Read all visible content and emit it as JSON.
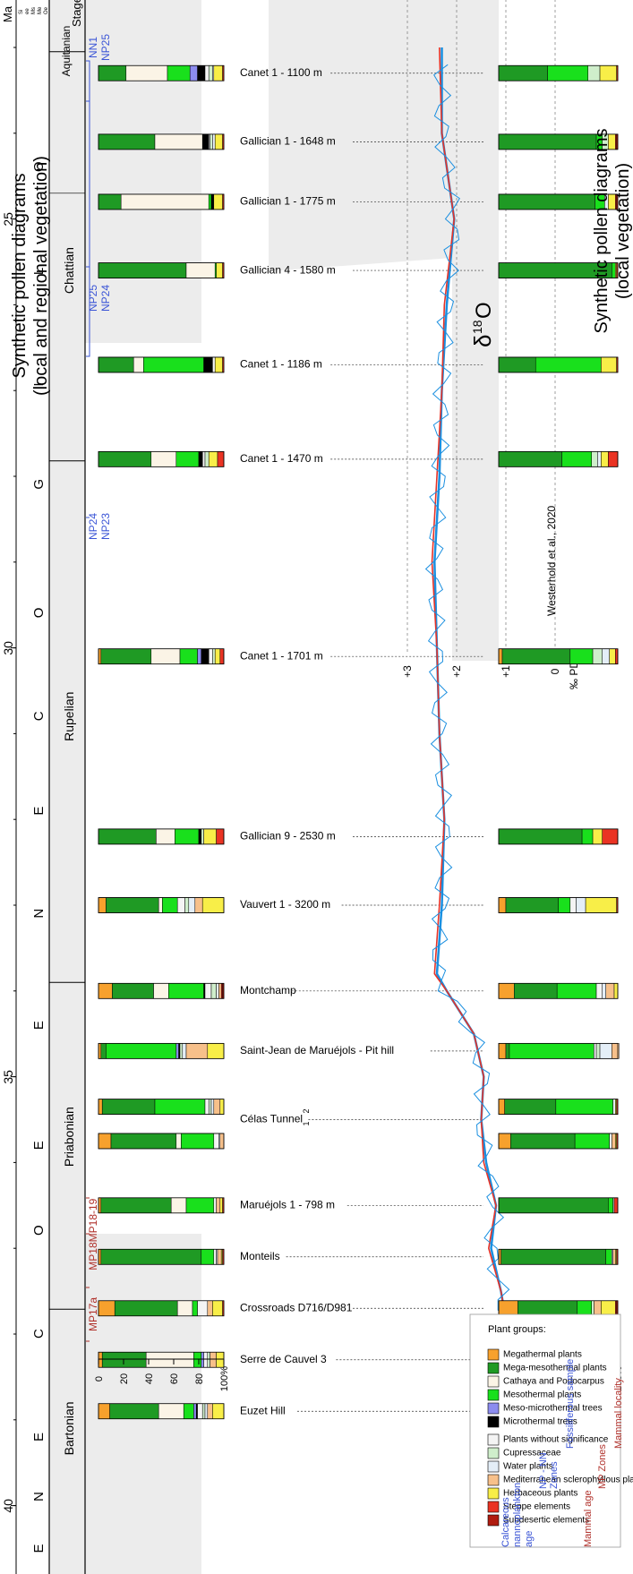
{
  "titles": {
    "left_line1": "Synthetic pollen diagrams",
    "left_line2": "(local and regional vegetation)",
    "right_line1": "Synthetic pollen diagrams",
    "right_line2": "(local vegetation)",
    "delta": "δ",
    "delta_sup": "18",
    "delta_o": "O"
  },
  "timescale": {
    "header_ma": "Ma",
    "header_series_lines": [
      "Si",
      "ee",
      "Ms",
      "Me",
      "Oe"
    ],
    "header_stages": "Stages",
    "ticks": [
      "25",
      "30",
      "35",
      "40"
    ],
    "substages": [
      {
        "label": "O",
        "ma": 24.4
      },
      {
        "label": "L",
        "ma": 25.6
      },
      {
        "label": "I",
        "ma": 26.9
      },
      {
        "label": "G",
        "ma": 28.1
      },
      {
        "label": "O",
        "ma": 29.6
      },
      {
        "label": "C",
        "ma": 30.8
      },
      {
        "label": "E",
        "ma": 31.9
      },
      {
        "label": "N",
        "ma": 33.1
      },
      {
        "label": "E",
        "ma": 34.4
      },
      {
        "label": "E",
        "ma": 35.8
      },
      {
        "label": "O",
        "ma": 36.8
      },
      {
        "label": "C",
        "ma": 38.0
      },
      {
        "label": "E",
        "ma": 39.2
      },
      {
        "label": "N",
        "ma": 39.9
      },
      {
        "label": "E",
        "ma": 40.5
      }
    ],
    "stages": [
      "Aquitanian",
      "Chattian",
      "Rupelian",
      "Priabonian",
      "Bartonian"
    ]
  },
  "zones": {
    "nn": [
      "NN1",
      "NP25",
      "NP25",
      "NP24",
      "NP24",
      "NP23"
    ],
    "mp": [
      "MP18-19",
      "MP18",
      "MP17a"
    ]
  },
  "legend_zones": {
    "calc_line1": "Calcareous",
    "calc_line2": "nannoplankton",
    "calc_line3": "age",
    "np_line1": "NP - NN",
    "np_line2": "Zones",
    "fossil": "Fossiliferous sample",
    "mammal_age": "Mammal age",
    "mp": "MP Zones",
    "mammal_locality": "Mammal locality"
  },
  "plant_legend": {
    "title": "Plant groups:",
    "left": [
      {
        "label": "Megathermal plants",
        "color": "#f7a12d"
      },
      {
        "label": "Mega-mesothermal plants",
        "color": "#1f9a24"
      },
      {
        "label": "Cathaya and Podocarpus",
        "color": "#fbf4e6"
      },
      {
        "label": "Mesothermal plants",
        "color": "#19e01c"
      },
      {
        "label": "Meso-microthermal trees",
        "color": "#8c8cef"
      },
      {
        "label": "Microthermal trees",
        "color": "#000000"
      }
    ],
    "right": [
      {
        "label": "Plants without significance",
        "color": "#f4f4f4"
      },
      {
        "label": "Cupressaceae",
        "color": "#cfeecb"
      },
      {
        "label": "Water plants",
        "color": "#e4eef7"
      },
      {
        "label": "Mediterranean sclerophyllous plants",
        "color": "#f7c08a"
      },
      {
        "label": "Herbaceous plants",
        "color": "#f8ee48"
      },
      {
        "label": "Steppe elements",
        "color": "#ea3323"
      },
      {
        "label": "Subdesertic elements",
        "color": "#b01c10"
      }
    ]
  },
  "pollen_axis": {
    "ticks": [
      "0",
      "20",
      "40",
      "60",
      "80",
      "100%"
    ]
  },
  "samples": [
    {
      "name": "Canet 1 - 1100 m",
      "ma": 23.3,
      "note": ""
    },
    {
      "name": "Gallician 1 - 1648 m",
      "ma": 24.1,
      "note": ""
    },
    {
      "name": "Gallician 1 - 1775 m",
      "ma": 24.8,
      "note": ""
    },
    {
      "name": "Gallician 4 - 1580 m",
      "ma": 25.6,
      "note": ""
    },
    {
      "name": "Canet 1 - 1186 m",
      "ma": 26.7,
      "note": ""
    },
    {
      "name": "Canet 1 - 1470 m",
      "ma": 27.8,
      "note": ""
    },
    {
      "name": "Canet 1 - 1701 m",
      "ma": 30.1,
      "note": ""
    },
    {
      "name": "Gallician 9 - 2530 m",
      "ma": 32.2,
      "note": ""
    },
    {
      "name": "Vauvert 1 - 3200 m",
      "ma": 33.0,
      "note": ""
    },
    {
      "name": "Montchamp",
      "ma": 34.0,
      "note": ""
    },
    {
      "name": "Saint-Jean de Maruéjols - Pit hill",
      "ma": 34.7,
      "note": ""
    },
    {
      "name": "Célas Tunnel",
      "ma": 35.5,
      "note": "2"
    },
    {
      "name": "Maruéjols 1 - 798 m",
      "ma": 36.5,
      "note": ""
    },
    {
      "name": "Monteils",
      "ma": 37.1,
      "note": ""
    },
    {
      "name": "Crossroads D716/D981",
      "ma": 37.7,
      "note": ""
    },
    {
      "name": "Serre de Cauvel 3",
      "ma": 38.3,
      "note": ""
    },
    {
      "name": "Euzet Hill",
      "ma": 38.9,
      "note": ""
    }
  ],
  "celas_note_1": "1",
  "chart_data": [
    {
      "type": "bar",
      "title": "Synthetic pollen diagrams (local and regional vegetation)",
      "stacked": true,
      "xlim": [
        0,
        100
      ],
      "categories": [
        "Canet 1 - 1100 m",
        "Gallician 1 - 1648 m",
        "Gallician 1 - 1775 m",
        "Gallician 4 - 1580 m",
        "Canet 1 - 1186 m",
        "Canet 1 - 1470 m",
        "Canet 1 - 1701 m",
        "Gallician 9 - 2530 m",
        "Vauvert 1 - 3200 m",
        "Montchamp",
        "Saint-Jean de Maruéjols - Pit hill",
        "Célas Tunnel 2",
        "Célas Tunnel 1",
        "Maruéjols 1 - 798 m",
        "Monteils",
        "Crossroads D716/D981",
        "Serre de Cauvel 3",
        "Euzet Hill"
      ],
      "series_order": [
        "Megathermal plants",
        "Mega-mesothermal plants",
        "Cathaya and Podocarpus",
        "Mesothermal plants",
        "Meso-microthermal trees",
        "Microthermal trees",
        "Plants without significance",
        "Cupressaceae",
        "Water plants",
        "Mediterranean sclerophyllous plants",
        "Herbaceous plants",
        "Steppe elements",
        "Subdesertic elements"
      ],
      "values": [
        [
          0,
          22,
          33,
          18,
          6,
          6,
          3,
          3,
          1,
          0,
          7,
          1,
          0
        ],
        [
          0,
          45,
          38,
          0,
          0,
          5,
          1,
          2,
          2,
          0,
          6,
          1,
          0
        ],
        [
          0,
          18,
          70,
          2,
          0,
          2,
          0,
          0,
          0,
          0,
          7,
          1,
          0
        ],
        [
          0,
          70,
          23,
          1,
          0,
          0,
          0,
          0,
          0,
          0,
          5,
          1,
          0
        ],
        [
          0,
          28,
          8,
          48,
          0,
          7,
          2,
          0,
          0,
          0,
          6,
          1,
          0
        ],
        [
          0,
          42,
          20,
          18,
          0,
          3,
          2,
          3,
          0,
          0,
          7,
          5,
          0
        ],
        [
          2,
          40,
          23,
          14,
          3,
          6,
          3,
          2,
          0,
          0,
          4,
          3,
          0
        ],
        [
          0,
          46,
          15,
          19,
          0,
          2,
          0,
          2,
          0,
          0,
          10,
          6,
          0
        ],
        [
          6,
          42,
          3,
          12,
          0,
          0,
          6,
          3,
          5,
          6,
          17,
          0,
          0
        ],
        [
          11,
          33,
          12,
          28,
          0,
          1,
          5,
          4,
          2,
          2,
          0,
          1,
          1
        ],
        [
          2,
          4,
          0,
          56,
          2,
          1,
          0,
          2,
          3,
          17,
          13,
          0,
          0
        ],
        [
          3,
          42,
          0,
          40,
          0,
          0,
          3,
          2,
          2,
          5,
          3,
          0,
          0
        ],
        [
          10,
          52,
          4,
          26,
          0,
          0,
          4,
          0,
          1,
          3,
          0,
          0,
          0
        ],
        [
          2,
          56,
          12,
          22,
          0,
          0,
          2,
          0,
          0,
          3,
          2,
          1,
          0
        ],
        [
          2,
          80,
          0,
          10,
          0,
          0,
          2,
          0,
          1,
          3,
          1,
          1,
          0
        ],
        [
          13,
          50,
          12,
          4,
          0,
          0,
          8,
          0,
          0,
          4,
          8,
          1,
          0
        ],
        [
          3,
          35,
          38,
          6,
          2,
          0,
          3,
          2,
          0,
          5,
          6,
          0,
          0
        ],
        [
          9,
          39,
          20,
          8,
          2,
          1,
          4,
          2,
          2,
          4,
          9,
          0,
          0
        ]
      ]
    },
    {
      "type": "bar",
      "title": "Synthetic pollen diagrams (local vegetation)",
      "stacked": true,
      "xlim": [
        0,
        100
      ],
      "categories": [
        "Canet 1 - 1100 m",
        "Gallician 1 - 1648 m",
        "Gallician 1 - 1775 m",
        "Gallician 4 - 1580 m",
        "Canet 1 - 1186 m",
        "Canet 1 - 1470 m",
        "Canet 1 - 1701 m",
        "Gallician 9 - 2530 m",
        "Vauvert 1 - 3200 m",
        "Montchamp",
        "Saint-Jean de Maruéjols - Pit hill",
        "Célas Tunnel 2",
        "Célas Tunnel 1",
        "Maruéjols 1 - 798 m",
        "Monteils",
        "Crossroads D716/D981",
        "Serre de Cauvel 3",
        "Euzet Hill"
      ],
      "series_order": [
        "Megathermal plants",
        "Mega-mesothermal plants",
        "Mesothermal plants",
        "Plants without significance",
        "Cupressaceae",
        "Water plants",
        "Mediterranean sclerophyllous plants",
        "Herbaceous plants",
        "Steppe elements",
        "Subdesertic elements"
      ],
      "values": [
        [
          0,
          41,
          34,
          0,
          10,
          0,
          0,
          14,
          1,
          0
        ],
        [
          0,
          82,
          5,
          0,
          5,
          0,
          0,
          6,
          1,
          1
        ],
        [
          0,
          81,
          8,
          0,
          0,
          3,
          0,
          6,
          1,
          1
        ],
        [
          0,
          95,
          3,
          0,
          0,
          0,
          0,
          1,
          1,
          0
        ],
        [
          0,
          31,
          55,
          0,
          0,
          0,
          0,
          13,
          1,
          0
        ],
        [
          0,
          53,
          25,
          0,
          5,
          3,
          0,
          6,
          8,
          0
        ],
        [
          3,
          57,
          19,
          0,
          8,
          6,
          0,
          5,
          2,
          0
        ],
        [
          0,
          70,
          9,
          0,
          0,
          0,
          0,
          8,
          13,
          0
        ],
        [
          6,
          44,
          10,
          5,
          0,
          8,
          0,
          26,
          1,
          0
        ],
        [
          13,
          36,
          33,
          5,
          0,
          3,
          7,
          3,
          0,
          0
        ],
        [
          6,
          3,
          71,
          2,
          3,
          10,
          6,
          0,
          0,
          0
        ],
        [
          5,
          43,
          48,
          0,
          0,
          2,
          0,
          1,
          1,
          0
        ],
        [
          10,
          54,
          29,
          0,
          0,
          2,
          3,
          1,
          1,
          0
        ],
        [
          0,
          92,
          4,
          0,
          0,
          1,
          0,
          0,
          3,
          0
        ],
        [
          2,
          88,
          5,
          0,
          0,
          1,
          2,
          1,
          1,
          0
        ],
        [
          16,
          50,
          12,
          0,
          2,
          0,
          6,
          12,
          1,
          1
        ],
        [
          3,
          58,
          13,
          2,
          5,
          0,
          6,
          12,
          1,
          0
        ],
        [
          10,
          50,
          12,
          2,
          2,
          2,
          3,
          17,
          1,
          1
        ]
      ]
    },
    {
      "type": "line",
      "title": "δ18O",
      "xlabel": "‰ PDB",
      "xlim": [
        3,
        -0.3
      ],
      "x_reversed": true,
      "xticks": [
        "+3",
        "+2",
        "+1",
        "0"
      ],
      "source": "Westerhold et al., 2020",
      "series": [
        {
          "name": "raw",
          "color": "#1a8fe0",
          "ma": [
            23.0,
            24.0,
            25.0,
            26.0,
            27.0,
            28.0,
            29.0,
            30.0,
            31.0,
            32.0,
            33.0,
            33.8,
            34.0,
            34.5,
            35.0,
            35.5,
            36.0,
            36.5,
            37.0,
            37.5,
            38.0,
            38.5,
            39.0,
            39.5,
            40.0
          ],
          "values": [
            2.3,
            2.3,
            2.05,
            2.2,
            2.3,
            2.35,
            2.45,
            2.4,
            2.35,
            2.25,
            2.3,
            2.4,
            2.2,
            1.65,
            1.45,
            1.5,
            1.4,
            1.2,
            1.3,
            1.1,
            0.95,
            1.0,
            1.2,
            0.9,
            0.55
          ]
        },
        {
          "name": "smoothed",
          "color": "#e63227",
          "ma": [
            23.0,
            24.0,
            25.0,
            26.0,
            27.0,
            28.0,
            29.0,
            30.0,
            31.0,
            32.0,
            33.0,
            33.8,
            34.0,
            34.5,
            35.0,
            35.5,
            36.0,
            36.5,
            37.0,
            37.5,
            38.0,
            38.5,
            39.0,
            39.5,
            40.0
          ],
          "values": [
            2.35,
            2.3,
            2.05,
            2.25,
            2.3,
            2.4,
            2.5,
            2.4,
            2.35,
            2.25,
            2.35,
            2.45,
            2.2,
            1.65,
            1.45,
            1.5,
            1.45,
            1.2,
            1.35,
            1.1,
            0.95,
            1.0,
            1.2,
            0.9,
            0.55
          ]
        }
      ]
    }
  ]
}
